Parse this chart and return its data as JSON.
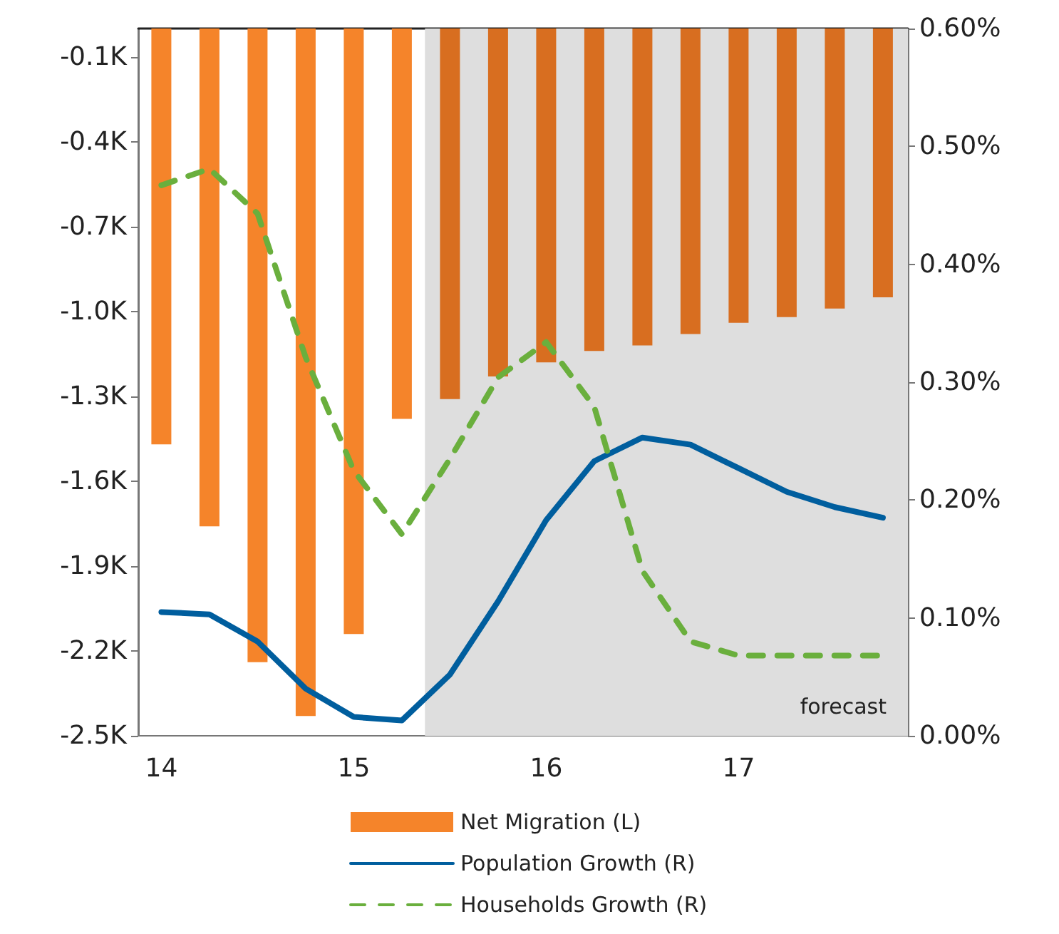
{
  "chart_data": {
    "type": "bar",
    "x": [
      14,
      14.25,
      14.5,
      14.75,
      15,
      15.25,
      15.5,
      15.75,
      16,
      16.25,
      16.5,
      16.75,
      17,
      17.25,
      17.5,
      17.75
    ],
    "xlim": [
      13.88,
      17.88
    ],
    "xticks": [
      14,
      15,
      16,
      17
    ],
    "ylim": [
      -2.5,
      0
    ],
    "yticks": [
      {
        "value": -2.5,
        "label": "-2.5K"
      },
      {
        "value": -2.2,
        "label": "-2.2K"
      },
      {
        "value": -1.9,
        "label": "-1.9K"
      },
      {
        "value": -1.6,
        "label": "-1.6K"
      },
      {
        "value": -1.3,
        "label": "-1.3K"
      },
      {
        "value": -1.0,
        "label": "-1.0K"
      },
      {
        "value": -0.7,
        "label": "-0.7K"
      },
      {
        "value": -0.4,
        "label": "-0.4K"
      },
      {
        "value": -0.1,
        "label": "-0.1K"
      }
    ],
    "y2lim": [
      0,
      0.6
    ],
    "y2ticks": [
      {
        "value": 0,
        "label": "0.00%"
      },
      {
        "value": 0.1,
        "label": "0.10%"
      },
      {
        "value": 0.2,
        "label": "0.20%"
      },
      {
        "value": 0.3,
        "label": "0.30%"
      },
      {
        "value": 0.4,
        "label": "0.40%"
      },
      {
        "value": 0.5,
        "label": "0.50%"
      },
      {
        "value": 0.6,
        "label": "0.60%"
      }
    ],
    "series": [
      {
        "name": "Net Migration (L)",
        "color": "#f5842a",
        "colors": [
          "#f5842a",
          "#f5842a",
          "#f5842a",
          "#f5842a",
          "#f5842a",
          "#f5842a",
          "#d86e20",
          "#d86e20",
          "#d86e20",
          "#d86e20",
          "#d86e20",
          "#d86e20",
          "#d86e20",
          "#d86e20",
          "#d86e20",
          "#d86e20"
        ],
        "values": [
          -1.47,
          -1.76,
          -2.24,
          -2.43,
          -2.14,
          -1.38,
          -1.31,
          -1.23,
          -1.18,
          -1.14,
          -1.12,
          -1.08,
          -1.04,
          -1.02,
          -0.99,
          -0.95
        ]
      },
      {
        "name": "Population Growth (R)",
        "type": "line",
        "axis": "y2",
        "color": "#005e9e",
        "line_style": "solid",
        "values": [
          0.105,
          0.103,
          0.08,
          0.04,
          0.016,
          0.013,
          0.052,
          0.114,
          0.183,
          0.233,
          0.253,
          0.247,
          0.227,
          0.207,
          0.194,
          0.185
        ]
      },
      {
        "name": "Households Growth (R)",
        "type": "line",
        "axis": "y2",
        "color": "#6aaf3d",
        "line_style": "dashed",
        "values": [
          0.467,
          0.481,
          0.443,
          0.321,
          0.225,
          0.171,
          0.235,
          0.304,
          0.334,
          0.279,
          0.14,
          0.08,
          0.068,
          0.068,
          0.068,
          0.068
        ]
      }
    ],
    "bands": [
      {
        "axis": "x",
        "from": 15.37,
        "to": 17.88,
        "label": "forecast",
        "color": "#dedede"
      }
    ],
    "grid": false,
    "legend": "bottom",
    "marker": "none"
  }
}
